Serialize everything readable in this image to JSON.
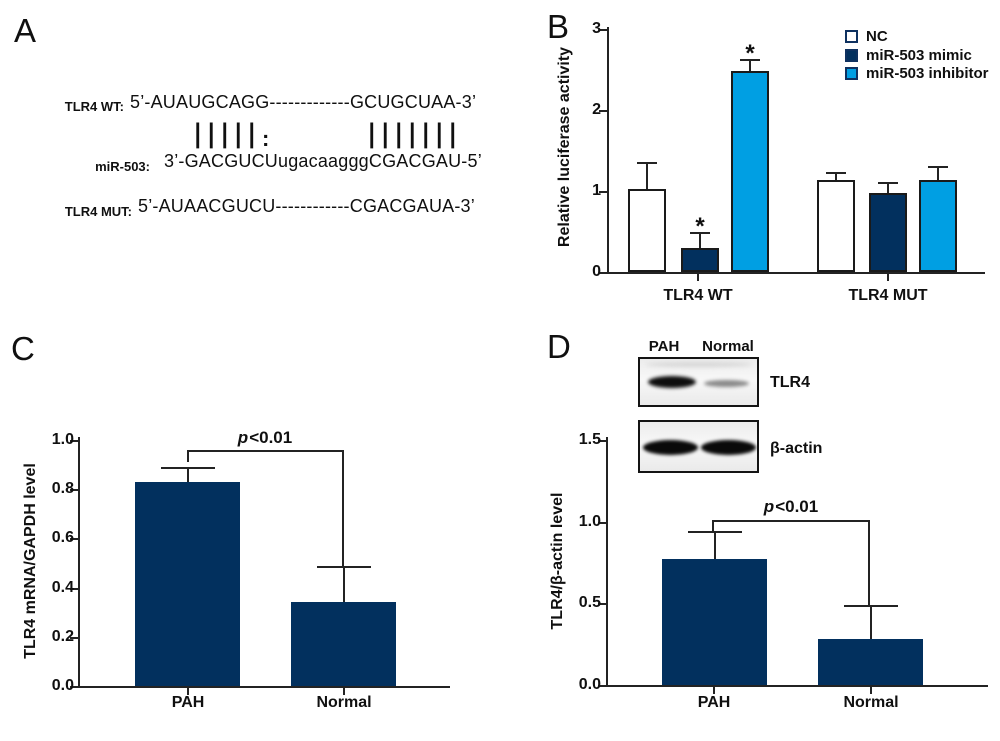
{
  "panels": {
    "a": "A",
    "b": "B",
    "c": "C",
    "d": "D"
  },
  "panel_a": {
    "rows": [
      {
        "label": "TLR4 WT:",
        "seq": "5’-AUAUGCAGG-------------GCUGCUAA-3’"
      },
      {
        "label": "miR-503:",
        "seq": "3’-GACGUCUugacaagggCGACGAU-5’"
      },
      {
        "label": "TLR4 MUT:",
        "seq": "5’-AUAACGUCU------------CGACGAUA-3’"
      }
    ],
    "pairing": {
      "left_bars": "|||||",
      "colon": ":",
      "right_bars": "|||||||"
    }
  },
  "colors": {
    "navy": "#02305e",
    "light_blue": "#009fe3",
    "white": "#ffffff",
    "ink": "#232323"
  },
  "chart_data": [
    {
      "panel": "B",
      "type": "bar",
      "title": "",
      "ylabel": "Relative luciferase activity",
      "ylim": [
        0,
        3
      ],
      "yticks": [
        "0",
        "1",
        "2",
        "3"
      ],
      "categories": [
        "TLR4 WT",
        "TLR4 MUT"
      ],
      "series": [
        {
          "name": "NC",
          "color": "#ffffff",
          "values": [
            1.02,
            1.14
          ],
          "errors": [
            0.33,
            0.08
          ],
          "sig": [
            "",
            ""
          ]
        },
        {
          "name": "miR-503 mimic",
          "color": "#02305e",
          "values": [
            0.3,
            0.97
          ],
          "errors": [
            0.18,
            0.13
          ],
          "sig": [
            "*",
            ""
          ]
        },
        {
          "name": "miR-503 inhibitor",
          "color": "#009fe3",
          "values": [
            2.48,
            1.14
          ],
          "errors": [
            0.14,
            0.16
          ],
          "sig": [
            "*",
            ""
          ]
        }
      ],
      "legend_position": "top-right",
      "grid": "off"
    },
    {
      "panel": "C",
      "type": "bar",
      "title": "",
      "ylabel": "TLR4 mRNA/GAPDH level",
      "ylim": [
        0,
        1.0
      ],
      "yticks": [
        "0.0",
        "0.2",
        "0.4",
        "0.6",
        "0.8",
        "1.0"
      ],
      "categories": [
        "PAH",
        "Normal"
      ],
      "series": [
        {
          "name": "",
          "color": "#02305e",
          "values": [
            0.83,
            0.34
          ],
          "errors": [
            0.055,
            0.145
          ],
          "sig": [
            "",
            ""
          ]
        }
      ],
      "p_italic": "p",
      "p_rest": "<0.01",
      "grid": "off"
    },
    {
      "panel": "D",
      "type": "bar",
      "title": "",
      "ylabel": "TLR4/β-actin level",
      "ylim": [
        0,
        1.5
      ],
      "yticks": [
        "0.0",
        "0.5",
        "1.0",
        "1.5"
      ],
      "categories": [
        "PAH",
        "Normal"
      ],
      "series": [
        {
          "name": "",
          "color": "#02305e",
          "values": [
            0.77,
            0.28
          ],
          "errors": [
            0.165,
            0.205
          ],
          "sig": [
            "",
            ""
          ]
        }
      ],
      "p_italic": "p",
      "p_rest": "<0.01",
      "blot": {
        "lanes": [
          "PAH",
          "Normal"
        ],
        "rows": [
          "TLR4",
          "β-actin"
        ]
      },
      "grid": "off"
    }
  ]
}
